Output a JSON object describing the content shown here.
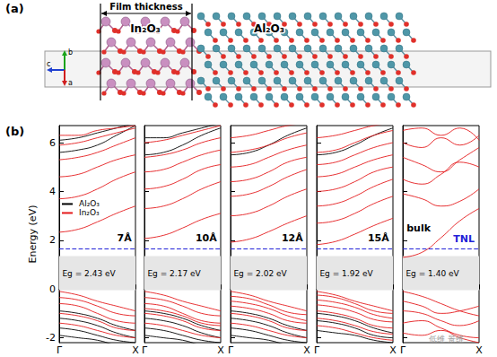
{
  "panel_a": {
    "label": "(a)",
    "film_thickness": "Film thickness",
    "layers": [
      "In₂O₃",
      "Al₂O₃"
    ],
    "axes": [
      "b",
      "c",
      "a"
    ]
  },
  "panel_b_label": "(b)",
  "watermark": "低维 景维",
  "chart_data": [
    {
      "type": "line",
      "title": "7Å",
      "ylabel": "Energy (eV)",
      "x": [
        0,
        0.25,
        0.5,
        0.75,
        1
      ],
      "xlim": [
        0,
        1
      ],
      "xticks": [
        {
          "value": 0,
          "label": "Γ"
        },
        {
          "value": 1,
          "label": "X"
        }
      ],
      "ylim": [
        -2.2,
        6.7
      ],
      "yticks": [
        -2,
        0,
        2,
        4,
        6
      ],
      "grid": false,
      "legend": "left",
      "gap_label": "Eg = 2.43 eV",
      "shaded": [
        -0.05,
        1.35
      ],
      "tnl": 1.65,
      "series": [
        {
          "name": "Al₂O₃",
          "color": "#000000",
          "values": [
            [
              5.6,
              5.7,
              5.9,
              6.3,
              6.7
            ],
            [
              6.1,
              6.2,
              6.4,
              6.6,
              6.8
            ],
            [
              -0.9,
              -1.0,
              -1.2,
              -1.5,
              -1.7
            ],
            [
              -1.2,
              -1.3,
              -1.5,
              -1.8,
              -2.0
            ],
            [
              -1.6,
              -1.7,
              -1.9,
              -2.1,
              -2.2
            ],
            [
              -1.9,
              -2.0,
              -2.1,
              -2.3,
              -2.4
            ]
          ]
        },
        {
          "name": "In₂O₃",
          "color": "#e41a1c",
          "values": [
            [
              2.33,
              2.45,
              2.75,
              3.1,
              3.4
            ],
            [
              3.7,
              3.8,
              4.1,
              4.5,
              4.8
            ],
            [
              4.6,
              4.7,
              5.0,
              5.3,
              5.5
            ],
            [
              5.3,
              5.4,
              5.6,
              5.9,
              6.2
            ],
            [
              5.9,
              6.0,
              6.2,
              6.4,
              6.6
            ],
            [
              6.3,
              6.3,
              6.5,
              6.6,
              6.7
            ],
            [
              -0.1,
              -0.25,
              -0.5,
              -0.7,
              -0.9
            ],
            [
              -0.35,
              -0.45,
              -0.7,
              -1.0,
              -1.1
            ],
            [
              -0.6,
              -0.7,
              -1.0,
              -1.3,
              -1.4
            ],
            [
              -1.0,
              -1.1,
              -1.3,
              -1.6,
              -1.7
            ],
            [
              -1.4,
              -1.5,
              -1.7,
              -1.9,
              -2.0
            ]
          ]
        }
      ]
    },
    {
      "type": "line",
      "title": "10Å",
      "x": [
        0,
        0.25,
        0.5,
        0.75,
        1
      ],
      "xlim": [
        0,
        1
      ],
      "xticks": [
        {
          "value": 0,
          "label": "Γ"
        },
        {
          "value": 1,
          "label": "X"
        }
      ],
      "ylim": [
        -2.2,
        6.7
      ],
      "yticks": [
        -2,
        0,
        2,
        4,
        6
      ],
      "grid": false,
      "tick_labels": "x",
      "gap_label": "Eg = 2.17 eV",
      "shaded": [
        -0.05,
        1.35
      ],
      "tnl": 1.65,
      "series": [
        {
          "name": "Al₂O₃",
          "color": "#000000",
          "values": [
            [
              5.5,
              5.6,
              5.9,
              6.3,
              6.6
            ],
            [
              6.2,
              6.2,
              6.4,
              6.6,
              6.8
            ],
            [
              -0.9,
              -1.0,
              -1.2,
              -1.5,
              -1.7
            ],
            [
              -1.2,
              -1.3,
              -1.5,
              -1.8,
              -2.0
            ],
            [
              -1.6,
              -1.7,
              -1.9,
              -2.1,
              -2.2
            ],
            [
              -1.9,
              -2.0,
              -2.1,
              -2.3,
              -2.4
            ]
          ]
        },
        {
          "name": "In₂O₃",
          "color": "#e41a1c",
          "values": [
            [
              2.07,
              2.2,
              2.5,
              2.85,
              3.1
            ],
            [
              3.3,
              3.4,
              3.7,
              4.1,
              4.4
            ],
            [
              4.1,
              4.2,
              4.5,
              4.9,
              5.1
            ],
            [
              4.8,
              4.9,
              5.2,
              5.5,
              5.7
            ],
            [
              5.4,
              5.5,
              5.7,
              6.0,
              6.2
            ],
            [
              6.0,
              6.1,
              6.3,
              6.5,
              6.7
            ],
            [
              -0.1,
              -0.25,
              -0.5,
              -0.7,
              -0.9
            ],
            [
              -0.35,
              -0.45,
              -0.7,
              -1.0,
              -1.1
            ],
            [
              -0.6,
              -0.7,
              -1.0,
              -1.3,
              -1.4
            ],
            [
              -0.8,
              -0.9,
              -1.1,
              -1.4,
              -1.5
            ],
            [
              -1.0,
              -1.1,
              -1.3,
              -1.6,
              -1.7
            ],
            [
              -1.4,
              -1.5,
              -1.7,
              -1.9,
              -2.0
            ]
          ]
        }
      ]
    },
    {
      "type": "line",
      "title": "12Å",
      "x": [
        0,
        0.25,
        0.5,
        0.75,
        1
      ],
      "xlim": [
        0,
        1
      ],
      "xticks": [
        {
          "value": 0,
          "label": "Γ"
        },
        {
          "value": 1,
          "label": "X"
        }
      ],
      "ylim": [
        -2.2,
        6.7
      ],
      "yticks": [
        -2,
        0,
        2,
        4,
        6
      ],
      "grid": false,
      "tick_labels": "x",
      "gap_label": "Eg = 2.02 eV",
      "shaded": [
        -0.05,
        1.35
      ],
      "tnl": 1.65,
      "series": [
        {
          "name": "Al₂O₃",
          "color": "#000000",
          "values": [
            [
              5.5,
              5.6,
              5.9,
              6.3,
              6.6
            ],
            [
              -0.9,
              -1.0,
              -1.2,
              -1.5,
              -1.7
            ],
            [
              -1.2,
              -1.3,
              -1.5,
              -1.8,
              -2.0
            ],
            [
              -1.6,
              -1.7,
              -1.9,
              -2.1,
              -2.2
            ],
            [
              -1.9,
              -2.0,
              -2.1,
              -2.3,
              -2.4
            ]
          ]
        },
        {
          "name": "In₂O₃",
          "color": "#e41a1c",
          "values": [
            [
              1.92,
              2.05,
              2.35,
              2.7,
              3.0
            ],
            [
              3.0,
              3.1,
              3.4,
              3.8,
              4.1
            ],
            [
              3.8,
              3.9,
              4.2,
              4.6,
              4.9
            ],
            [
              4.4,
              4.5,
              4.8,
              5.2,
              5.4
            ],
            [
              5.0,
              5.1,
              5.4,
              5.7,
              5.9
            ],
            [
              5.6,
              5.7,
              5.9,
              6.2,
              6.4
            ],
            [
              6.2,
              6.3,
              6.5,
              6.7,
              6.8
            ],
            [
              -0.1,
              -0.25,
              -0.5,
              -0.7,
              -0.9
            ],
            [
              -0.3,
              -0.4,
              -0.65,
              -0.95,
              -1.05
            ],
            [
              -0.5,
              -0.6,
              -0.8,
              -1.1,
              -1.3
            ],
            [
              -0.7,
              -0.8,
              -1.0,
              -1.3,
              -1.4
            ],
            [
              -1.0,
              -1.1,
              -1.3,
              -1.6,
              -1.7
            ],
            [
              -1.4,
              -1.5,
              -1.7,
              -1.9,
              -2.0
            ]
          ]
        }
      ]
    },
    {
      "type": "line",
      "title": "15Å",
      "x": [
        0,
        0.25,
        0.5,
        0.75,
        1
      ],
      "xlim": [
        0,
        1
      ],
      "xticks": [
        {
          "value": 0,
          "label": "Γ"
        },
        {
          "value": 1,
          "label": "X"
        }
      ],
      "ylim": [
        -2.2,
        6.7
      ],
      "yticks": [
        -2,
        0,
        2,
        4,
        6
      ],
      "grid": false,
      "tick_labels": "x",
      "gap_label": "Eg = 1.92 eV",
      "shaded": [
        -0.05,
        1.35
      ],
      "tnl": 1.65,
      "series": [
        {
          "name": "Al₂O₃",
          "color": "#000000",
          "values": [
            [
              5.5,
              5.6,
              5.9,
              6.3,
              6.6
            ],
            [
              -1.0,
              -1.1,
              -1.3,
              -1.6,
              -1.8
            ],
            [
              -1.3,
              -1.4,
              -1.6,
              -1.9,
              -2.0
            ],
            [
              -1.7,
              -1.8,
              -1.9,
              -2.1,
              -2.2
            ]
          ]
        },
        {
          "name": "In₂O₃",
          "color": "#e41a1c",
          "values": [
            [
              1.82,
              1.95,
              2.25,
              2.6,
              2.9
            ],
            [
              2.7,
              2.8,
              3.1,
              3.5,
              3.8
            ],
            [
              3.4,
              3.5,
              3.8,
              4.2,
              4.5
            ],
            [
              4.0,
              4.1,
              4.4,
              4.8,
              5.0
            ],
            [
              4.6,
              4.7,
              5.0,
              5.3,
              5.5
            ],
            [
              5.1,
              5.2,
              5.5,
              5.8,
              6.0
            ],
            [
              5.6,
              5.7,
              6.0,
              6.3,
              6.5
            ],
            [
              6.2,
              6.3,
              6.5,
              6.7,
              6.8
            ],
            [
              -0.1,
              -0.25,
              -0.5,
              -0.7,
              -0.9
            ],
            [
              -0.25,
              -0.35,
              -0.6,
              -0.9,
              -1.0
            ],
            [
              -0.45,
              -0.55,
              -0.75,
              -1.05,
              -1.2
            ],
            [
              -0.65,
              -0.75,
              -0.95,
              -1.25,
              -1.35
            ],
            [
              -0.9,
              -1.0,
              -1.2,
              -1.5,
              -1.6
            ],
            [
              -1.2,
              -1.3,
              -1.5,
              -1.75,
              -1.85
            ],
            [
              -1.5,
              -1.6,
              -1.8,
              -2.0,
              -2.1
            ]
          ]
        }
      ]
    },
    {
      "type": "line",
      "title": "bulk",
      "x": [
        0,
        0.25,
        0.5,
        0.75,
        1
      ],
      "xlim": [
        0,
        1
      ],
      "xticks": [
        {
          "value": 0,
          "label": "Γ"
        },
        {
          "value": 1,
          "label": "X"
        }
      ],
      "ylim": [
        -2.2,
        6.7
      ],
      "yticks": [
        -2,
        0,
        2,
        4,
        6
      ],
      "grid": false,
      "tick_labels": "x",
      "gap_label": "Eg = 1.40 eV",
      "shaded": [
        -0.05,
        1.35
      ],
      "tnl": 1.65,
      "tnl_label": "TNL",
      "series": [
        {
          "name": "In₂O₃",
          "color": "#e41a1c",
          "values": [
            [
              1.3,
              1.5,
              2.1,
              2.8,
              3.3
            ],
            [
              3.9,
              3.7,
              3.4,
              3.6,
              4.1
            ],
            [
              4.5,
              4.3,
              4.7,
              5.2,
              5.0
            ],
            [
              5.4,
              5.1,
              4.8,
              5.3,
              5.8
            ],
            [
              6.0,
              5.8,
              6.2,
              5.9,
              6.3
            ],
            [
              6.5,
              6.6,
              6.3,
              6.6,
              6.1
            ],
            [
              -0.1,
              -0.3,
              -0.6,
              -0.9,
              -1.1
            ],
            [
              -0.5,
              -0.7,
              -1.0,
              -0.9,
              -0.7
            ],
            [
              -0.9,
              -1.0,
              -1.3,
              -1.5,
              -1.3
            ],
            [
              -1.4,
              -1.3,
              -1.6,
              -1.9,
              -2.0
            ],
            [
              -1.8,
              -1.9,
              -1.7,
              -2.0,
              -2.2
            ]
          ]
        }
      ]
    }
  ]
}
